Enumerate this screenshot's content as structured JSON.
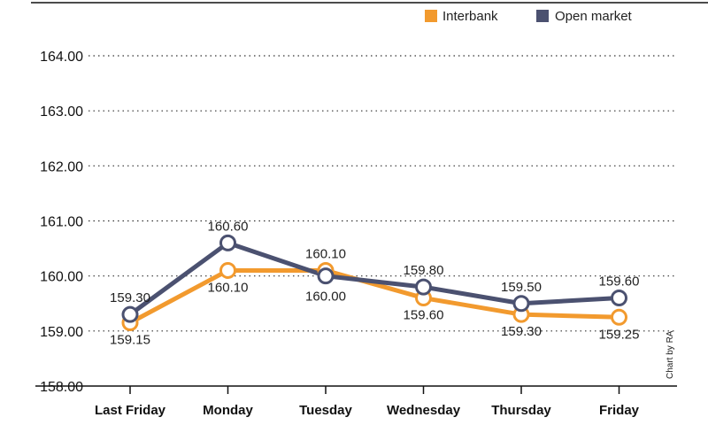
{
  "chart_data": {
    "type": "line",
    "title": "",
    "xlabel": "",
    "ylabel": "",
    "categories": [
      "Last Friday",
      "Monday",
      "Tuesday",
      "Wednesday",
      "Thursday",
      "Friday"
    ],
    "ylim": [
      158.0,
      164.0
    ],
    "yticks": [
      "158.00",
      "159.00",
      "160.00",
      "161.00",
      "162.00",
      "163.00",
      "164.00"
    ],
    "grid": "dotted horizontal",
    "legend_position": "top-right",
    "series": [
      {
        "name": "Interbank",
        "color": "#F29A2E",
        "values": [
          159.15,
          160.1,
          160.1,
          159.6,
          159.3,
          159.25
        ],
        "labels": [
          "159.15",
          "160.10",
          "160.10",
          "159.60",
          "159.30",
          "159.25"
        ]
      },
      {
        "name": "Open market",
        "color": "#4B5170",
        "values": [
          159.3,
          160.6,
          160.0,
          159.8,
          159.5,
          159.6
        ],
        "labels": [
          "159.30",
          "160.60",
          "160.00",
          "159.80",
          "159.50",
          "159.60"
        ]
      }
    ],
    "credit": "Chart by RA"
  }
}
